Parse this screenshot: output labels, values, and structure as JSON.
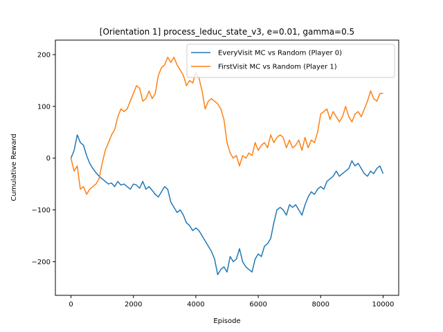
{
  "chart_data": {
    "type": "line",
    "title": "[Orientation 1] process_leduc_state_v3, e=0.01, gamma=0.5",
    "xlabel": "Episode",
    "ylabel": "Cumulative Reward",
    "xlim": [
      -500,
      10500
    ],
    "ylim": [
      -265,
      228
    ],
    "xticks": [
      0,
      2000,
      4000,
      6000,
      8000,
      10000
    ],
    "yticks": [
      -200,
      -100,
      0,
      100,
      200
    ],
    "ytick_labels": [
      "−200",
      "−100",
      "0",
      "100",
      "200"
    ],
    "grid": false,
    "legend_position": "upper right",
    "series": [
      {
        "name": "EveryVisit MC vs Random (Player 0)",
        "color": "#1f77b4",
        "x": [
          0,
          100,
          200,
          300,
          400,
          500,
          600,
          700,
          800,
          900,
          1000,
          1100,
          1200,
          1300,
          1400,
          1500,
          1600,
          1700,
          1800,
          1900,
          2000,
          2100,
          2200,
          2300,
          2400,
          2500,
          2600,
          2700,
          2800,
          2900,
          3000,
          3100,
          3200,
          3300,
          3400,
          3500,
          3600,
          3700,
          3800,
          3900,
          4000,
          4100,
          4200,
          4300,
          4400,
          4500,
          4600,
          4700,
          4800,
          4900,
          5000,
          5100,
          5200,
          5300,
          5400,
          5500,
          5600,
          5700,
          5800,
          5900,
          6000,
          6100,
          6200,
          6300,
          6400,
          6500,
          6600,
          6700,
          6800,
          6900,
          7000,
          7100,
          7200,
          7300,
          7400,
          7500,
          7600,
          7700,
          7800,
          7900,
          8000,
          8100,
          8200,
          8300,
          8400,
          8500,
          8600,
          8700,
          8800,
          8900,
          9000,
          9100,
          9200,
          9300,
          9400,
          9500,
          9600,
          9700,
          9800,
          9900,
          10000
        ],
        "y": [
          0,
          15,
          45,
          30,
          25,
          5,
          -10,
          -20,
          -28,
          -35,
          -40,
          -45,
          -50,
          -48,
          -55,
          -45,
          -52,
          -50,
          -55,
          -60,
          -50,
          -52,
          -58,
          -45,
          -60,
          -55,
          -62,
          -70,
          -75,
          -65,
          -55,
          -60,
          -85,
          -95,
          -105,
          -100,
          -110,
          -125,
          -130,
          -140,
          -135,
          -140,
          -150,
          -160,
          -170,
          -180,
          -195,
          -225,
          -215,
          -210,
          -220,
          -190,
          -200,
          -195,
          -175,
          -200,
          -210,
          -215,
          -220,
          -195,
          -185,
          -190,
          -170,
          -165,
          -155,
          -125,
          -100,
          -95,
          -100,
          -110,
          -90,
          -95,
          -90,
          -100,
          -110,
          -90,
          -75,
          -65,
          -70,
          -60,
          -55,
          -60,
          -45,
          -40,
          -35,
          -25,
          -35,
          -30,
          -25,
          -20,
          -5,
          -15,
          -10,
          -20,
          -30,
          -35,
          -25,
          -30,
          -20,
          -15,
          -30
        ]
      },
      {
        "name": "FirstVisit MC vs Random (Player 1)",
        "color": "#ff7f0e",
        "x": [
          0,
          100,
          200,
          300,
          400,
          500,
          600,
          700,
          800,
          900,
          1000,
          1100,
          1200,
          1300,
          1400,
          1500,
          1600,
          1700,
          1800,
          1900,
          2000,
          2100,
          2200,
          2300,
          2400,
          2500,
          2600,
          2700,
          2800,
          2900,
          3000,
          3100,
          3200,
          3300,
          3400,
          3500,
          3600,
          3700,
          3800,
          3900,
          4000,
          4100,
          4200,
          4300,
          4400,
          4500,
          4600,
          4700,
          4800,
          4900,
          5000,
          5100,
          5200,
          5300,
          5400,
          5500,
          5600,
          5700,
          5800,
          5900,
          6000,
          6100,
          6200,
          6300,
          6400,
          6500,
          6600,
          6700,
          6800,
          6900,
          7000,
          7100,
          7200,
          7300,
          7400,
          7500,
          7600,
          7700,
          7800,
          7900,
          8000,
          8100,
          8200,
          8300,
          8400,
          8500,
          8600,
          8700,
          8800,
          8900,
          9000,
          9100,
          9200,
          9300,
          9400,
          9500,
          9600,
          9700,
          9800,
          9900,
          10000
        ],
        "y": [
          0,
          -25,
          -15,
          -60,
          -55,
          -70,
          -60,
          -55,
          -50,
          -40,
          -10,
          15,
          30,
          45,
          55,
          80,
          95,
          90,
          95,
          110,
          125,
          140,
          135,
          110,
          115,
          130,
          115,
          125,
          160,
          175,
          180,
          195,
          185,
          195,
          180,
          170,
          160,
          140,
          150,
          145,
          165,
          155,
          130,
          95,
          110,
          115,
          110,
          105,
          95,
          75,
          30,
          10,
          0,
          5,
          -15,
          5,
          0,
          10,
          5,
          30,
          15,
          25,
          30,
          20,
          45,
          30,
          40,
          45,
          40,
          20,
          35,
          20,
          25,
          35,
          15,
          40,
          20,
          35,
          30,
          50,
          85,
          90,
          95,
          75,
          90,
          80,
          70,
          80,
          100,
          80,
          70,
          85,
          90,
          80,
          95,
          110,
          130,
          115,
          110,
          125,
          125
        ]
      }
    ]
  }
}
